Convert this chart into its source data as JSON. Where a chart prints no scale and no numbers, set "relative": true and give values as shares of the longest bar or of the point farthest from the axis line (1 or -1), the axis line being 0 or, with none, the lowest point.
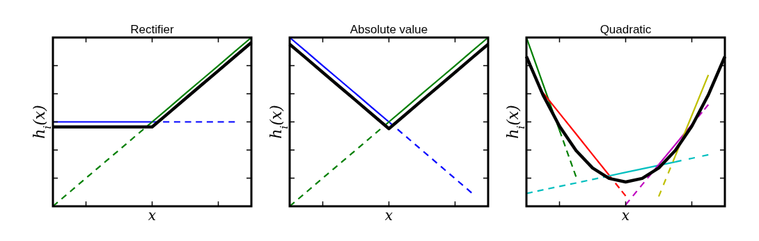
{
  "chart_data": [
    {
      "type": "line",
      "title": "Rectifier",
      "xlabel": "x",
      "ylabel": "h$_{i}$(x)",
      "relative": true,
      "tick_labels": false,
      "categories": [
        null,
        null,
        null,
        null,
        null,
        null,
        null,
        null,
        null,
        null,
        null,
        null,
        null
      ],
      "series": [
        {
          "color": "#0000ff",
          "line_style": "solid",
          "values": [
            0.5,
            0.5,
            0.5,
            0.5,
            0.5,
            0.5,
            0.5,
            null,
            null,
            null,
            null,
            null,
            null
          ]
        },
        {
          "color": "#0000ff",
          "line_style": "dashed",
          "values": [
            null,
            null,
            null,
            null,
            null,
            null,
            0.5,
            0.5,
            0.5,
            0.5,
            0.5,
            0.5,
            null
          ]
        },
        {
          "color": "#007f00",
          "line_style": "dashed",
          "values": [
            0,
            0.083,
            0.167,
            0.25,
            0.333,
            0.417,
            0.5,
            null,
            null,
            null,
            null,
            null,
            null
          ]
        },
        {
          "color": "#007f00",
          "line_style": "solid",
          "values": [
            null,
            null,
            null,
            null,
            null,
            null,
            0.5,
            0.583,
            0.667,
            0.75,
            0.833,
            0.917,
            1
          ]
        },
        {
          "color": "#000000",
          "line_style": "solid",
          "values": [
            0.47,
            0.47,
            0.47,
            0.47,
            0.47,
            0.47,
            0.47,
            0.553,
            0.637,
            0.72,
            0.803,
            0.887,
            0.97
          ]
        }
      ]
    },
    {
      "type": "line",
      "title": "Absolute value",
      "xlabel": "x",
      "ylabel": "h$_{i}$(x)",
      "relative": true,
      "tick_labels": false,
      "categories": [
        null,
        null,
        null,
        null,
        null,
        null,
        null,
        null,
        null,
        null,
        null,
        null,
        null
      ],
      "series": [
        {
          "color": "#0000ff",
          "line_style": "solid",
          "values": [
            1,
            0.917,
            0.833,
            0.75,
            0.667,
            0.583,
            0.5,
            null,
            null,
            null,
            null,
            null,
            null
          ]
        },
        {
          "color": "#0000ff",
          "line_style": "dashed",
          "values": [
            null,
            null,
            null,
            null,
            null,
            null,
            0.5,
            0.416,
            0.332,
            0.248,
            0.164,
            0.08,
            null
          ]
        },
        {
          "color": "#007f00",
          "line_style": "dashed",
          "values": [
            0,
            0.083,
            0.167,
            0.25,
            0.333,
            0.417,
            0.5,
            null,
            null,
            null,
            null,
            null,
            null
          ]
        },
        {
          "color": "#007f00",
          "line_style": "solid",
          "values": [
            null,
            null,
            null,
            null,
            null,
            null,
            0.5,
            0.583,
            0.667,
            0.75,
            0.833,
            0.917,
            1
          ]
        },
        {
          "color": "#000000",
          "line_style": "solid",
          "values": [
            0.96,
            0.877,
            0.793,
            0.71,
            0.627,
            0.543,
            0.46,
            0.543,
            0.627,
            0.71,
            0.793,
            0.877,
            0.96
          ]
        }
      ]
    },
    {
      "type": "line",
      "title": "Quadratic",
      "xlabel": "x",
      "ylabel": "h$_{i}$(x)",
      "relative": true,
      "tick_labels": false,
      "categories": [
        null,
        null,
        null,
        null,
        null,
        null,
        null,
        null,
        null,
        null,
        null,
        null,
        null
      ],
      "series": [
        {
          "color": "#007f00",
          "line_style": "solid",
          "values": [
            1,
            0.725,
            0.45,
            null,
            null,
            null,
            null,
            null,
            null,
            null,
            null,
            null,
            null
          ]
        },
        {
          "color": "#007f00",
          "line_style": "dashed",
          "values": [
            null,
            null,
            0.45,
            0.175,
            null,
            null,
            null,
            null,
            null,
            null,
            null,
            null,
            null
          ]
        },
        {
          "color": "#ff0000",
          "line_style": "solid",
          "values": [
            null,
            0.673,
            0.551,
            0.429,
            0.306,
            0.184,
            null,
            null,
            null,
            null,
            null,
            null,
            null
          ]
        },
        {
          "color": "#ff0000",
          "line_style": "dashed",
          "values": [
            null,
            null,
            null,
            null,
            null,
            0.184,
            0.061,
            null,
            null,
            null,
            null,
            null,
            null
          ]
        },
        {
          "color": "#00bfbf",
          "line_style": "dashed",
          "values": [
            0.076,
            0.097,
            0.118,
            0.138,
            0.159,
            0.18,
            null,
            null,
            null,
            null,
            null,
            null,
            null
          ]
        },
        {
          "color": "#00bfbf",
          "line_style": "solid",
          "values": [
            null,
            null,
            null,
            null,
            null,
            0.18,
            0.201,
            0.222,
            0.242,
            0.263,
            null,
            null,
            null
          ]
        },
        {
          "color": "#00bfbf",
          "line_style": "dashed",
          "values": [
            null,
            null,
            null,
            null,
            null,
            null,
            null,
            null,
            null,
            0.263,
            0.284,
            0.305,
            null
          ]
        },
        {
          "color": "#bf00bf",
          "line_style": "dashed",
          "values": [
            null,
            null,
            null,
            null,
            null,
            null,
            0.009,
            0.128,
            0.247,
            null,
            null,
            null,
            null
          ]
        },
        {
          "color": "#bf00bf",
          "line_style": "solid",
          "values": [
            null,
            null,
            null,
            null,
            null,
            null,
            null,
            null,
            0.247,
            0.365,
            0.484,
            null,
            null
          ]
        },
        {
          "color": "#bf00bf",
          "line_style": "dashed",
          "values": [
            null,
            null,
            null,
            null,
            null,
            null,
            null,
            null,
            null,
            null,
            0.484,
            0.602,
            null
          ]
        },
        {
          "color": "#bfbf00",
          "line_style": "dashed",
          "values": [
            null,
            null,
            null,
            null,
            null,
            null,
            null,
            null,
            0.058,
            0.298,
            null,
            null,
            null
          ]
        },
        {
          "color": "#bfbf00",
          "line_style": "solid",
          "values": [
            null,
            null,
            null,
            null,
            null,
            null,
            null,
            null,
            null,
            0.298,
            0.538,
            0.778,
            null
          ]
        },
        {
          "color": "#000000",
          "line_style": "solid",
          "values": [
            0.887,
            0.66,
            0.474,
            0.33,
            0.227,
            0.165,
            0.144,
            0.165,
            0.227,
            0.33,
            0.474,
            0.66,
            0.887
          ]
        }
      ]
    }
  ]
}
